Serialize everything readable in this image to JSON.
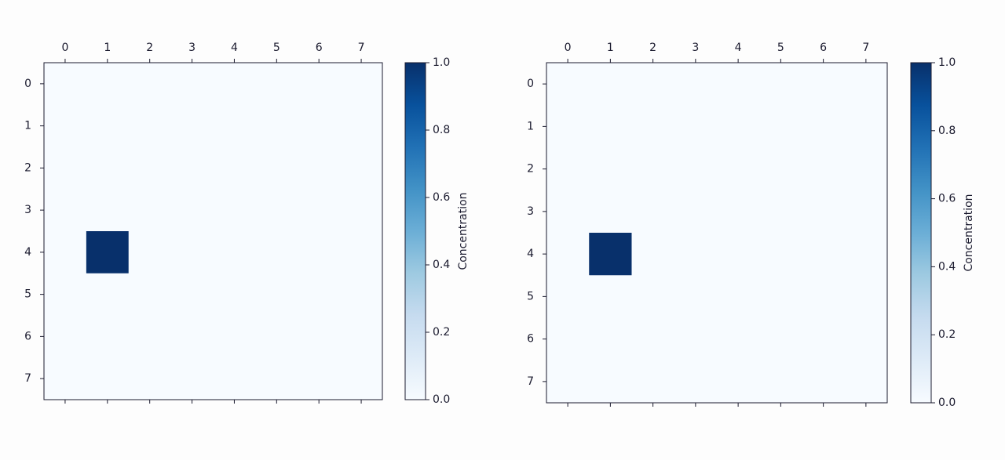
{
  "chart_data": [
    {
      "type": "heatmap",
      "colormap": "Blues",
      "xlim": [
        -0.5,
        7.5
      ],
      "ylim": [
        7.5,
        -0.5
      ],
      "xticks": [
        0,
        1,
        2,
        3,
        4,
        5,
        6,
        7
      ],
      "yticks": [
        0,
        1,
        2,
        3,
        4,
        5,
        6,
        7
      ],
      "values": [
        [
          0,
          0,
          0,
          0,
          0,
          0,
          0,
          0
        ],
        [
          0,
          0,
          0,
          0,
          0,
          0,
          0,
          0
        ],
        [
          0,
          0,
          0,
          0,
          0,
          0,
          0,
          0
        ],
        [
          0,
          0,
          0,
          0,
          0,
          0,
          0,
          0
        ],
        [
          0,
          1,
          0,
          0,
          0,
          0,
          0,
          0
        ],
        [
          0,
          0,
          0,
          0,
          0,
          0,
          0,
          0
        ],
        [
          0,
          0,
          0,
          0,
          0,
          0,
          0,
          0
        ],
        [
          0,
          0,
          0,
          0,
          0,
          0,
          0,
          0
        ]
      ],
      "clim": [
        0,
        1
      ],
      "cticks": [
        {
          "value": 0,
          "label": "0.0"
        },
        0.2,
        0.4,
        0.6,
        0.8,
        {
          "value": 1,
          "label": "1.0"
        }
      ],
      "colorbar_label": "Concentration"
    },
    {
      "type": "heatmap",
      "colormap": "Blues",
      "xlim": [
        -0.5,
        7.5
      ],
      "ylim": [
        7.5,
        -0.5
      ],
      "xticks": [
        0,
        1,
        2,
        3,
        4,
        5,
        6,
        7
      ],
      "yticks": [
        0,
        1,
        2,
        3,
        4,
        5,
        6,
        7
      ],
      "values": [
        [
          0,
          0,
          0,
          0,
          0,
          0,
          0,
          0
        ],
        [
          0,
          0,
          0,
          0,
          0,
          0,
          0,
          0
        ],
        [
          0,
          0,
          0,
          0,
          0,
          0,
          0,
          0
        ],
        [
          0,
          0,
          0,
          0,
          0,
          0,
          0,
          0
        ],
        [
          0,
          1,
          0,
          0,
          0,
          0,
          0,
          0
        ],
        [
          0,
          0,
          0,
          0,
          0,
          0,
          0,
          0
        ],
        [
          0,
          0,
          0,
          0,
          0,
          0,
          0,
          0
        ],
        [
          0,
          0,
          0,
          0,
          0,
          0,
          0,
          0
        ]
      ],
      "clim": [
        0,
        1
      ],
      "cticks": [
        {
          "value": 0,
          "label": "0.0"
        },
        0.2,
        0.4,
        0.6,
        0.8,
        {
          "value": 1,
          "label": "1.0"
        }
      ],
      "colorbar_label": "Concentration"
    }
  ]
}
